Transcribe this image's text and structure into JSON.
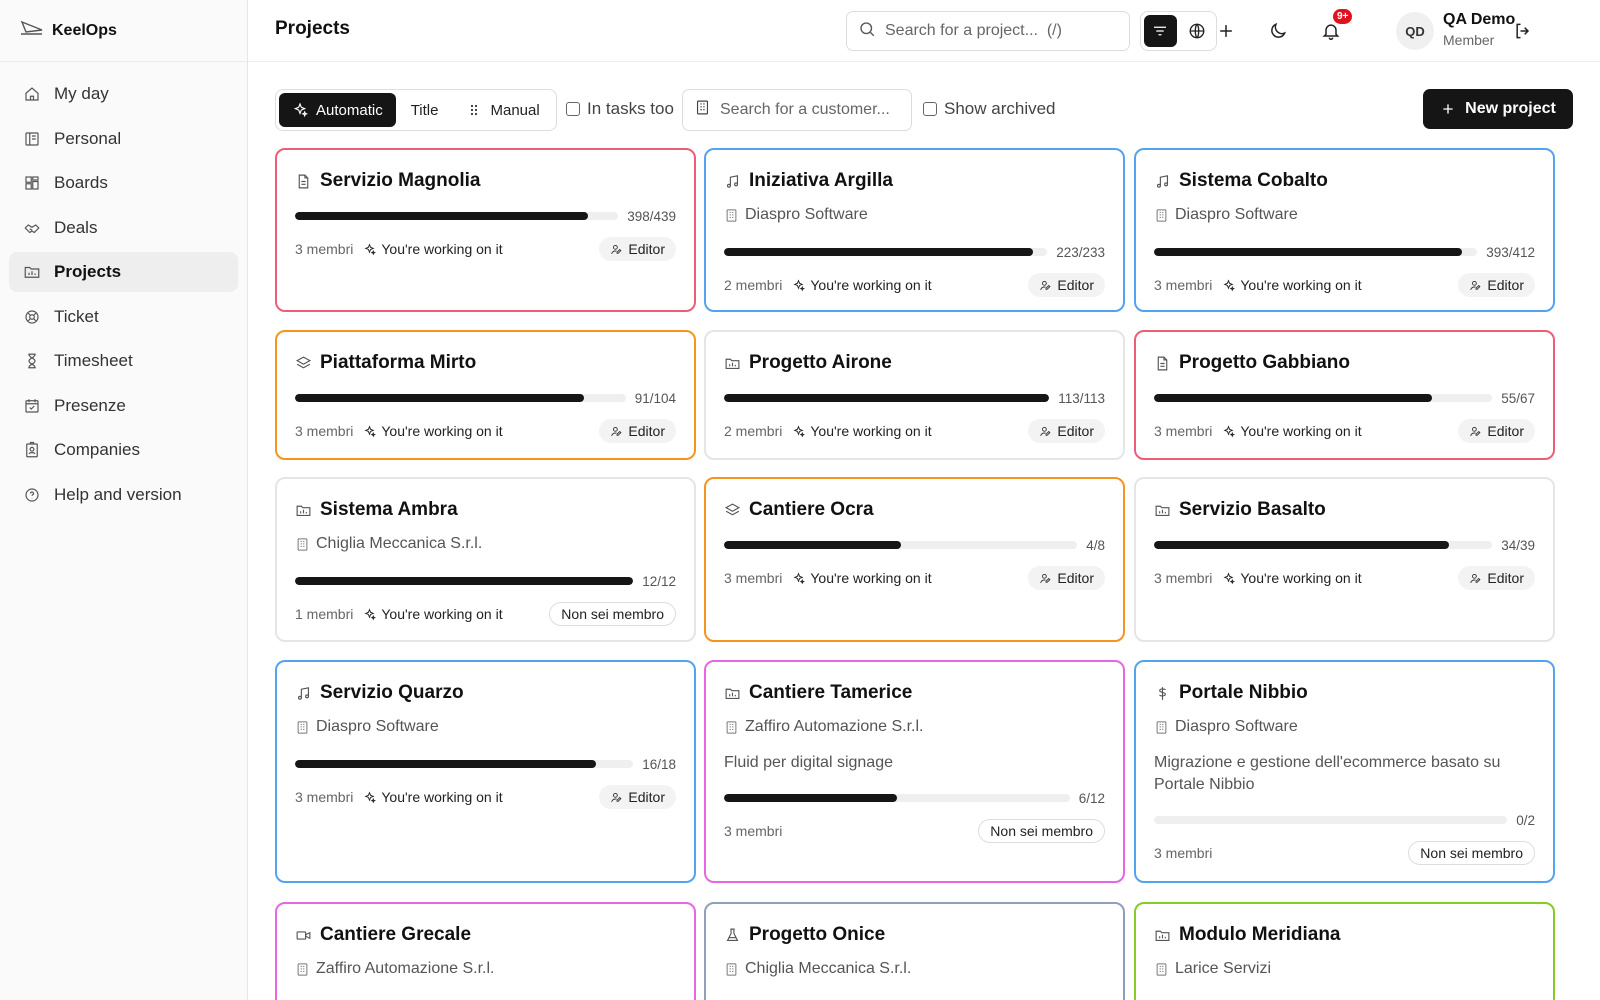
{
  "app": {
    "name": "KeelOps"
  },
  "sidebar": {
    "items": [
      {
        "label": "My day",
        "icon": "home-icon"
      },
      {
        "label": "Personal",
        "icon": "book-icon"
      },
      {
        "label": "Boards",
        "icon": "boards-icon"
      },
      {
        "label": "Deals",
        "icon": "handshake-icon"
      },
      {
        "label": "Projects",
        "icon": "folder-chart-icon",
        "active": true
      },
      {
        "label": "Ticket",
        "icon": "lifebuoy-icon"
      },
      {
        "label": "Timesheet",
        "icon": "hourglass-icon"
      },
      {
        "label": "Presenze",
        "icon": "calendar-check-icon"
      },
      {
        "label": "Companies",
        "icon": "badge-icon"
      },
      {
        "label": "Help and version",
        "icon": "help-circle-icon"
      }
    ]
  },
  "header": {
    "title": "Projects",
    "search_placeholder": "Search for a project...  (/)",
    "notifications_badge": "9+",
    "user": {
      "initials": "QD",
      "name": "QA Demo",
      "role": "Member"
    }
  },
  "toolbar": {
    "sort_options": [
      {
        "label": "Automatic",
        "icon": "sparkles-icon",
        "active": true
      },
      {
        "label": "Title",
        "icon": "",
        "active": false
      },
      {
        "label": "Manual",
        "icon": "grip-icon",
        "active": false
      }
    ],
    "in_tasks_too": "In tasks too",
    "customer_placeholder": "Search for a customer...",
    "show_archived": "Show archived",
    "new_project": "New project"
  },
  "colors": {
    "red": "#ee5d78",
    "blue": "#53a3f0",
    "orange": "#f5951f",
    "magenta": "#e866e6",
    "slate": "#8fa0b8",
    "lime": "#86cc28",
    "none": "#e5e5e5"
  },
  "projects": [
    {
      "title": "Servizio Magnolia",
      "icon": "document-icon",
      "border": "red",
      "customer": "",
      "description": "",
      "done": 398,
      "total": 439,
      "count": "398/439",
      "members": "3 membri",
      "working": "You're working on it",
      "role": "Editor"
    },
    {
      "title": "Iniziativa Argilla",
      "icon": "music-icon",
      "border": "blue",
      "customer": "Diaspro Software",
      "description": "",
      "done": 223,
      "total": 233,
      "count": "223/233",
      "members": "2 membri",
      "working": "You're working on it",
      "role": "Editor"
    },
    {
      "title": "Sistema Cobalto",
      "icon": "music-icon",
      "border": "blue",
      "customer": "Diaspro Software",
      "description": "",
      "done": 393,
      "total": 412,
      "count": "393/412",
      "members": "3 membri",
      "working": "You're working on it",
      "role": "Editor"
    },
    {
      "title": "Piattaforma Mirto",
      "icon": "layers-icon",
      "border": "orange",
      "customer": "",
      "description": "",
      "done": 91,
      "total": 104,
      "count": "91/104",
      "members": "3 membri",
      "working": "You're working on it",
      "role": "Editor"
    },
    {
      "title": "Progetto Airone",
      "icon": "folder-chart-icon",
      "border": "none",
      "customer": "",
      "description": "",
      "done": 113,
      "total": 113,
      "count": "113/113",
      "members": "2 membri",
      "working": "You're working on it",
      "role": "Editor"
    },
    {
      "title": "Progetto Gabbiano",
      "icon": "document-icon",
      "border": "red",
      "customer": "",
      "description": "",
      "done": 55,
      "total": 67,
      "count": "55/67",
      "members": "3 membri",
      "working": "You're working on it",
      "role": "Editor"
    },
    {
      "title": "Sistema Ambra",
      "icon": "folder-chart-icon",
      "border": "none",
      "customer": "Chiglia Meccanica S.r.l.",
      "description": "",
      "done": 12,
      "total": 12,
      "count": "12/12",
      "members": "1 membri",
      "working": "You're working on it",
      "role": "Non sei membro"
    },
    {
      "title": "Cantiere Ocra",
      "icon": "layers-icon",
      "border": "orange",
      "customer": "",
      "description": "",
      "done": 4,
      "total": 8,
      "count": "4/8",
      "members": "3 membri",
      "working": "You're working on it",
      "role": "Editor"
    },
    {
      "title": "Servizio Basalto",
      "icon": "folder-chart-icon",
      "border": "none",
      "customer": "",
      "description": "",
      "done": 34,
      "total": 39,
      "count": "34/39",
      "members": "3 membri",
      "working": "You're working on it",
      "role": "Editor"
    },
    {
      "title": "Servizio Quarzo",
      "icon": "music-icon",
      "border": "blue",
      "customer": "Diaspro Software",
      "description": "",
      "done": 16,
      "total": 18,
      "count": "16/18",
      "members": "3 membri",
      "working": "You're working on it",
      "role": "Editor"
    },
    {
      "title": "Cantiere Tamerice",
      "icon": "folder-chart-icon",
      "border": "magenta",
      "customer": "Zaffiro Automazione S.r.l.",
      "description": "Fluid per digital signage",
      "done": 6,
      "total": 12,
      "count": "6/12",
      "members": "3 membri",
      "working": "",
      "role": "Non sei membro"
    },
    {
      "title": "Portale Nibbio",
      "icon": "dollar-icon",
      "border": "blue",
      "customer": "Diaspro Software",
      "description": "Migrazione e gestione dell'ecommerce basato su Portale Nibbio",
      "done": 0,
      "total": 2,
      "count": "0/2",
      "members": "3 membri",
      "working": "",
      "role": "Non sei membro"
    },
    {
      "title": "Cantiere Grecale",
      "icon": "video-icon",
      "border": "magenta",
      "customer": "Zaffiro Automazione S.r.l.",
      "description": "",
      "done": 0,
      "total": 0,
      "count": "",
      "members": "",
      "working": "",
      "role": ""
    },
    {
      "title": "Progetto Onice",
      "icon": "flask-icon",
      "border": "slate",
      "customer": "Chiglia Meccanica S.r.l.",
      "description": "",
      "done": 0,
      "total": 0,
      "count": "",
      "members": "",
      "working": "",
      "role": ""
    },
    {
      "title": "Modulo Meridiana",
      "icon": "folder-chart-icon",
      "border": "lime",
      "customer": "Larice Servizi",
      "description": "",
      "done": 0,
      "total": 0,
      "count": "",
      "members": "",
      "working": "",
      "role": ""
    }
  ]
}
